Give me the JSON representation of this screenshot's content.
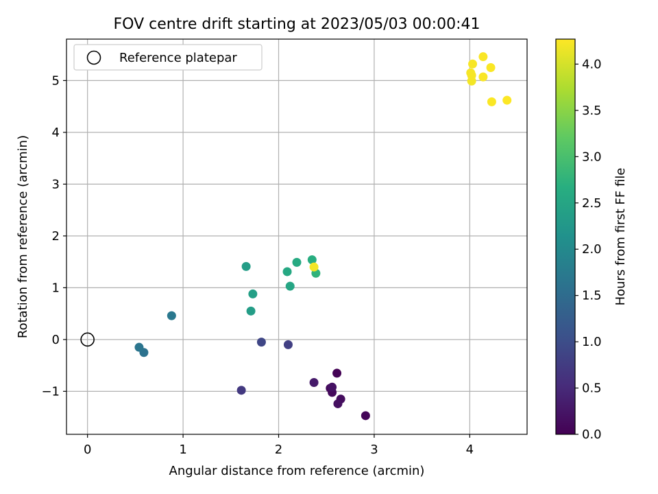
{
  "chart_data": {
    "type": "scatter",
    "title": "FOV centre drift starting at 2023/05/03 00:00:41",
    "xlabel": "Angular distance from reference (arcmin)",
    "ylabel": "Rotation from reference (arcmin)",
    "xlim": [
      -0.22,
      4.6
    ],
    "ylim": [
      -1.83,
      5.8
    ],
    "xticks": [
      0,
      1,
      2,
      3,
      4
    ],
    "yticks": [
      -1,
      0,
      1,
      2,
      3,
      4,
      5
    ],
    "ytick_labels": [
      "−1",
      "0",
      "1",
      "2",
      "3",
      "4",
      "5"
    ],
    "grid": true,
    "legend": {
      "position": "top-left",
      "entries": [
        "Reference platepar"
      ]
    },
    "reference_point": {
      "x": 0,
      "y": 0
    },
    "colorbar": {
      "label": "Hours from first FF file",
      "min": 0.0,
      "max": 4.27,
      "ticks": [
        0.0,
        0.5,
        1.0,
        1.5,
        2.0,
        2.5,
        3.0,
        3.5,
        4.0
      ],
      "tick_labels": [
        "0.0",
        "0.5",
        "1.0",
        "1.5",
        "2.0",
        "2.5",
        "3.0",
        "3.5",
        "4.0"
      ],
      "colormap": "viridis"
    },
    "points": [
      {
        "x": 2.61,
        "y": -0.65,
        "hours": 0.02
      },
      {
        "x": 2.91,
        "y": -1.47,
        "hours": 0.05
      },
      {
        "x": 2.54,
        "y": -0.94,
        "hours": 0.08
      },
      {
        "x": 2.56,
        "y": -1.02,
        "hours": 0.11
      },
      {
        "x": 2.65,
        "y": -1.15,
        "hours": 0.14
      },
      {
        "x": 2.62,
        "y": -1.24,
        "hours": 0.17
      },
      {
        "x": 2.56,
        "y": -0.92,
        "hours": 0.2
      },
      {
        "x": 2.37,
        "y": -0.83,
        "hours": 0.3
      },
      {
        "x": 1.61,
        "y": -0.98,
        "hours": 0.7
      },
      {
        "x": 2.1,
        "y": -0.1,
        "hours": 0.8
      },
      {
        "x": 1.82,
        "y": -0.05,
        "hours": 0.9
      },
      {
        "x": 0.59,
        "y": -0.25,
        "hours": 1.6
      },
      {
        "x": 0.54,
        "y": -0.15,
        "hours": 1.65
      },
      {
        "x": 0.88,
        "y": 0.46,
        "hours": 1.7
      },
      {
        "x": 1.71,
        "y": 0.55,
        "hours": 2.35
      },
      {
        "x": 1.73,
        "y": 0.88,
        "hours": 2.4
      },
      {
        "x": 2.12,
        "y": 1.03,
        "hours": 2.5
      },
      {
        "x": 1.66,
        "y": 1.41,
        "hours": 2.35
      },
      {
        "x": 2.09,
        "y": 1.31,
        "hours": 2.55
      },
      {
        "x": 2.19,
        "y": 1.49,
        "hours": 2.6
      },
      {
        "x": 2.35,
        "y": 1.54,
        "hours": 2.65
      },
      {
        "x": 2.39,
        "y": 1.28,
        "hours": 2.75
      },
      {
        "x": 2.37,
        "y": 1.4,
        "hours": 4.2
      },
      {
        "x": 4.02,
        "y": 4.99,
        "hours": 4.2
      },
      {
        "x": 4.01,
        "y": 5.15,
        "hours": 4.22
      },
      {
        "x": 4.02,
        "y": 5.1,
        "hours": 4.22
      },
      {
        "x": 4.03,
        "y": 5.32,
        "hours": 4.23
      },
      {
        "x": 4.14,
        "y": 5.07,
        "hours": 4.24
      },
      {
        "x": 4.14,
        "y": 5.46,
        "hours": 4.24
      },
      {
        "x": 4.22,
        "y": 5.25,
        "hours": 4.25
      },
      {
        "x": 4.23,
        "y": 4.59,
        "hours": 4.25
      },
      {
        "x": 4.39,
        "y": 4.62,
        "hours": 4.26
      }
    ]
  }
}
